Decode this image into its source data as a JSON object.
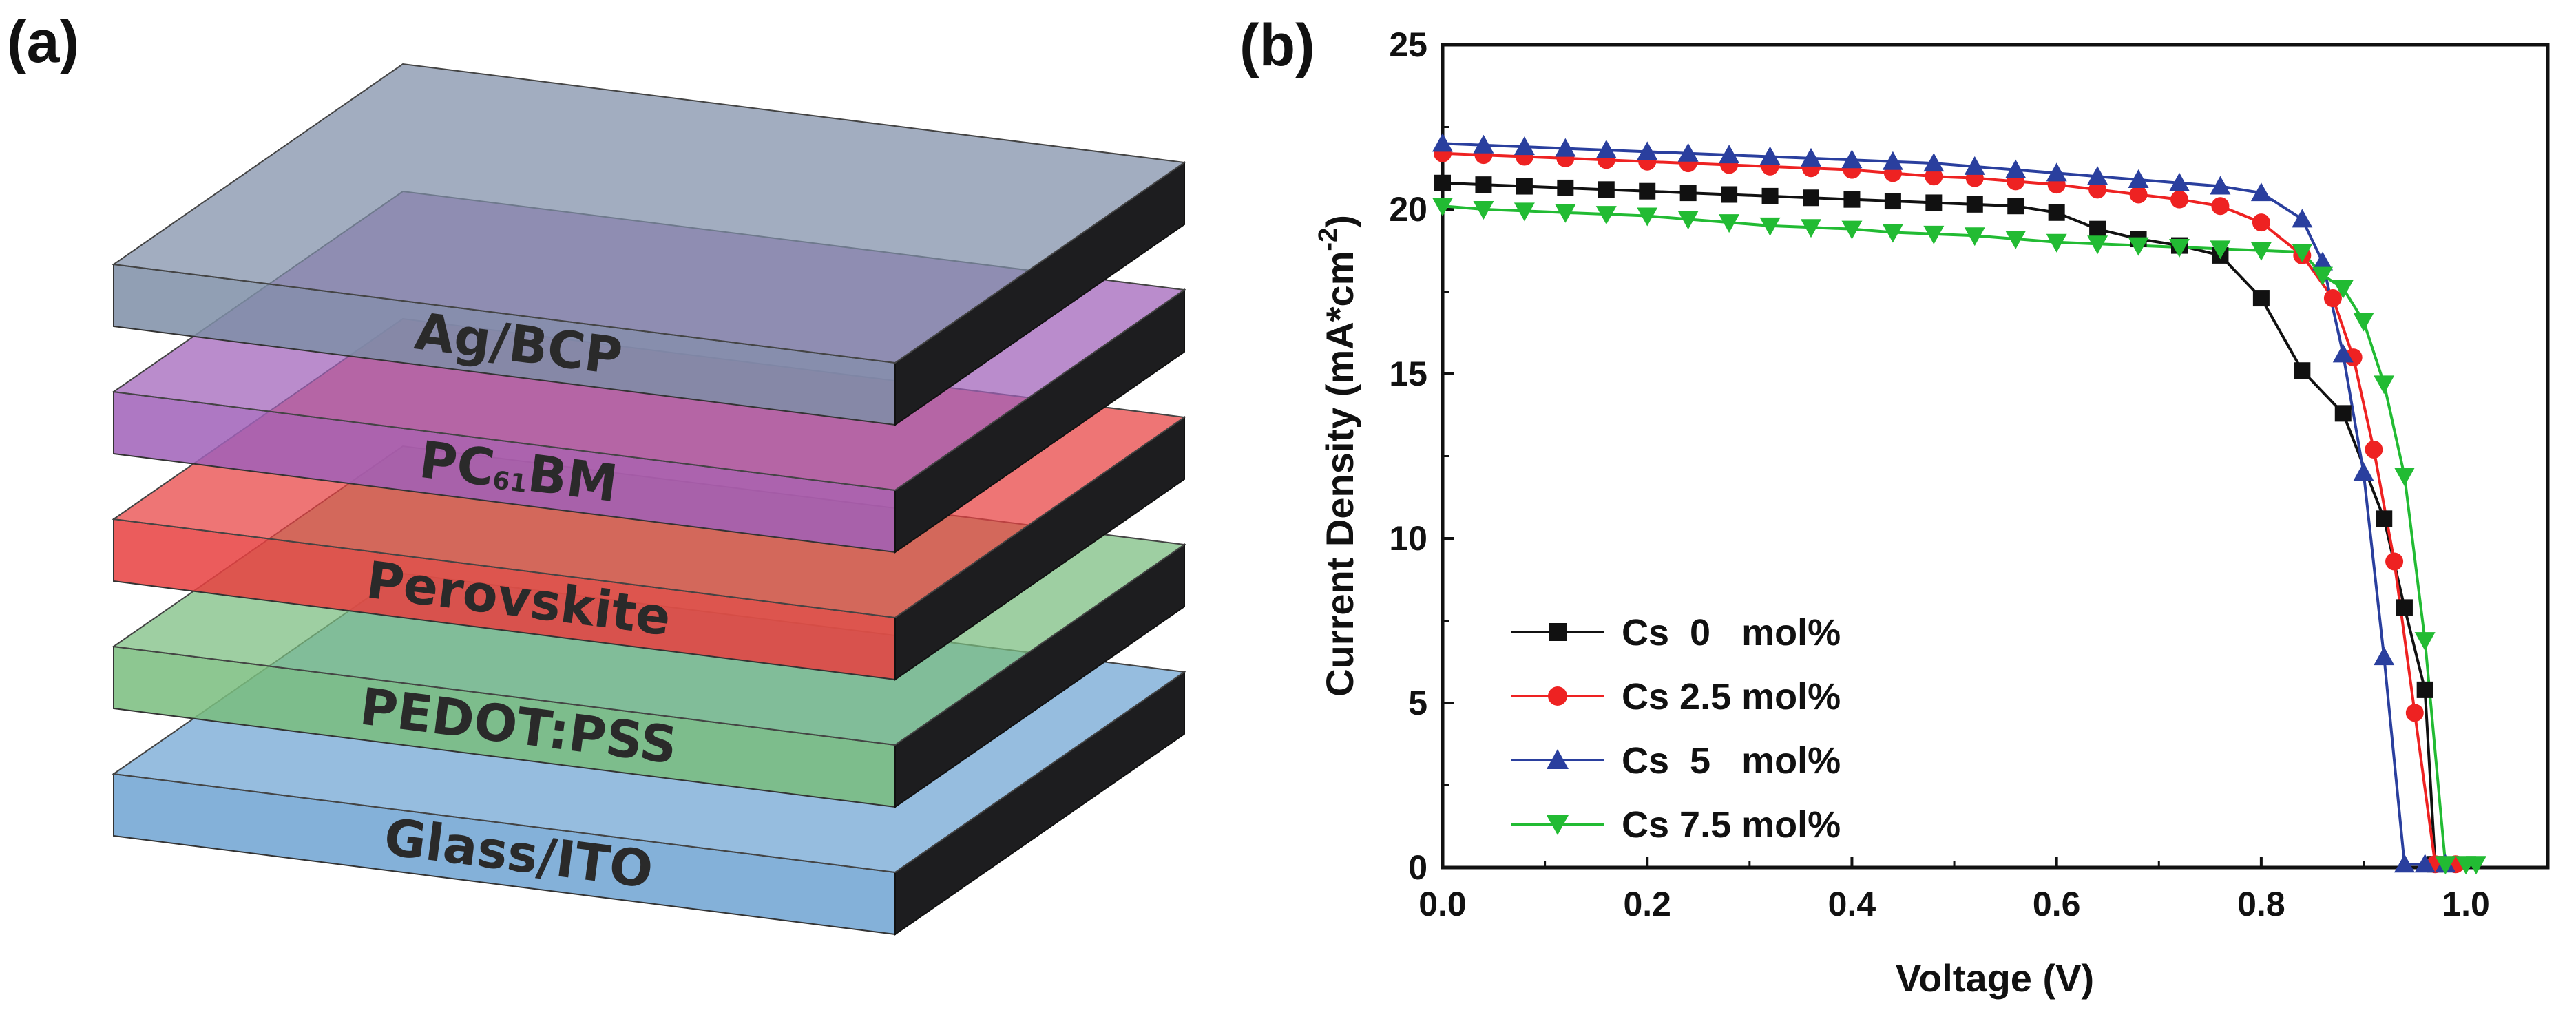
{
  "panel_a": {
    "label": "(a)",
    "layers": [
      {
        "name": "Ag/BCP",
        "color": "#7e8ea7"
      },
      {
        "name": "PC",
        "sub": "61",
        "name_suffix": "BM",
        "color": "#a060b8"
      },
      {
        "name": "Perovskite",
        "color": "#e84040"
      },
      {
        "name": "PEDOT:PSS",
        "color": "#79bd7e"
      },
      {
        "name": "Glass/ITO",
        "color": "#6ea3d2"
      }
    ]
  },
  "panel_b": {
    "label": "(b)"
  },
  "chart_data": {
    "type": "line",
    "title": "",
    "xlabel": "Voltage (V)",
    "ylabel": "Current Density (mA*cm",
    "ylabel_sup": "-2",
    "ylabel_close": ")",
    "xlim": [
      0.0,
      1.08
    ],
    "ylim": [
      0,
      25
    ],
    "xticks": [
      0.0,
      0.2,
      0.4,
      0.6,
      0.8,
      1.0
    ],
    "xtick_labels": [
      "0.0",
      "0.2",
      "0.4",
      "0.6",
      "0.8",
      "1.0"
    ],
    "yticks": [
      0,
      5,
      10,
      15,
      20,
      25
    ],
    "ytick_labels": [
      "0",
      "5",
      "10",
      "15",
      "20",
      "25"
    ],
    "legend_position": "lower-left",
    "series": [
      {
        "name": "Cs  0   mol%",
        "marker": "square",
        "color": "#111111",
        "x": [
          0.0,
          0.04,
          0.08,
          0.12,
          0.16,
          0.2,
          0.24,
          0.28,
          0.32,
          0.36,
          0.4,
          0.44,
          0.48,
          0.52,
          0.56,
          0.6,
          0.64,
          0.68,
          0.72,
          0.76,
          0.8,
          0.84,
          0.88,
          0.92,
          0.94,
          0.96,
          0.97
        ],
        "y": [
          20.8,
          20.75,
          20.7,
          20.65,
          20.6,
          20.55,
          20.5,
          20.45,
          20.4,
          20.35,
          20.3,
          20.25,
          20.2,
          20.15,
          20.1,
          19.9,
          19.4,
          19.1,
          18.9,
          18.6,
          17.3,
          15.1,
          13.8,
          10.6,
          7.9,
          5.4,
          0.1
        ]
      },
      {
        "name": "Cs 2.5 mol%",
        "marker": "circle",
        "color": "#ee2222",
        "x": [
          0.0,
          0.04,
          0.08,
          0.12,
          0.16,
          0.2,
          0.24,
          0.28,
          0.32,
          0.36,
          0.4,
          0.44,
          0.48,
          0.52,
          0.56,
          0.6,
          0.64,
          0.68,
          0.72,
          0.76,
          0.8,
          0.84,
          0.87,
          0.89,
          0.91,
          0.93,
          0.95,
          0.97,
          0.99
        ],
        "y": [
          21.7,
          21.65,
          21.6,
          21.55,
          21.5,
          21.45,
          21.4,
          21.35,
          21.3,
          21.25,
          21.2,
          21.1,
          21.0,
          20.95,
          20.85,
          20.75,
          20.6,
          20.45,
          20.3,
          20.1,
          19.6,
          18.6,
          17.3,
          15.5,
          12.7,
          9.3,
          4.7,
          0.1,
          0.1
        ]
      },
      {
        "name": "Cs  5   mol%",
        "marker": "triangle-up",
        "color": "#2a3f9e",
        "x": [
          0.0,
          0.04,
          0.08,
          0.12,
          0.16,
          0.2,
          0.24,
          0.28,
          0.32,
          0.36,
          0.4,
          0.44,
          0.48,
          0.52,
          0.56,
          0.6,
          0.64,
          0.68,
          0.72,
          0.76,
          0.8,
          0.84,
          0.86,
          0.88,
          0.9,
          0.92,
          0.94,
          0.96,
          0.98
        ],
        "y": [
          22.0,
          21.95,
          21.9,
          21.85,
          21.8,
          21.75,
          21.7,
          21.65,
          21.6,
          21.55,
          21.5,
          21.45,
          21.4,
          21.3,
          21.2,
          21.1,
          21.0,
          20.9,
          20.8,
          20.7,
          20.5,
          19.7,
          18.4,
          15.6,
          12.0,
          6.4,
          0.1,
          0.1,
          0.1
        ]
      },
      {
        "name": "Cs 7.5 mol%",
        "marker": "triangle-down",
        "color": "#22bb33",
        "x": [
          0.0,
          0.04,
          0.08,
          0.12,
          0.16,
          0.2,
          0.24,
          0.28,
          0.32,
          0.36,
          0.4,
          0.44,
          0.48,
          0.52,
          0.56,
          0.6,
          0.64,
          0.68,
          0.72,
          0.76,
          0.8,
          0.84,
          0.86,
          0.88,
          0.9,
          0.92,
          0.94,
          0.96,
          0.98,
          1.0,
          1.01
        ],
        "y": [
          20.1,
          20.0,
          19.95,
          19.9,
          19.85,
          19.8,
          19.7,
          19.6,
          19.5,
          19.45,
          19.4,
          19.3,
          19.25,
          19.2,
          19.1,
          19.0,
          18.95,
          18.9,
          18.85,
          18.8,
          18.75,
          18.7,
          18.0,
          17.6,
          16.6,
          14.7,
          11.9,
          6.9,
          0.1,
          0.1,
          0.1
        ]
      }
    ]
  }
}
